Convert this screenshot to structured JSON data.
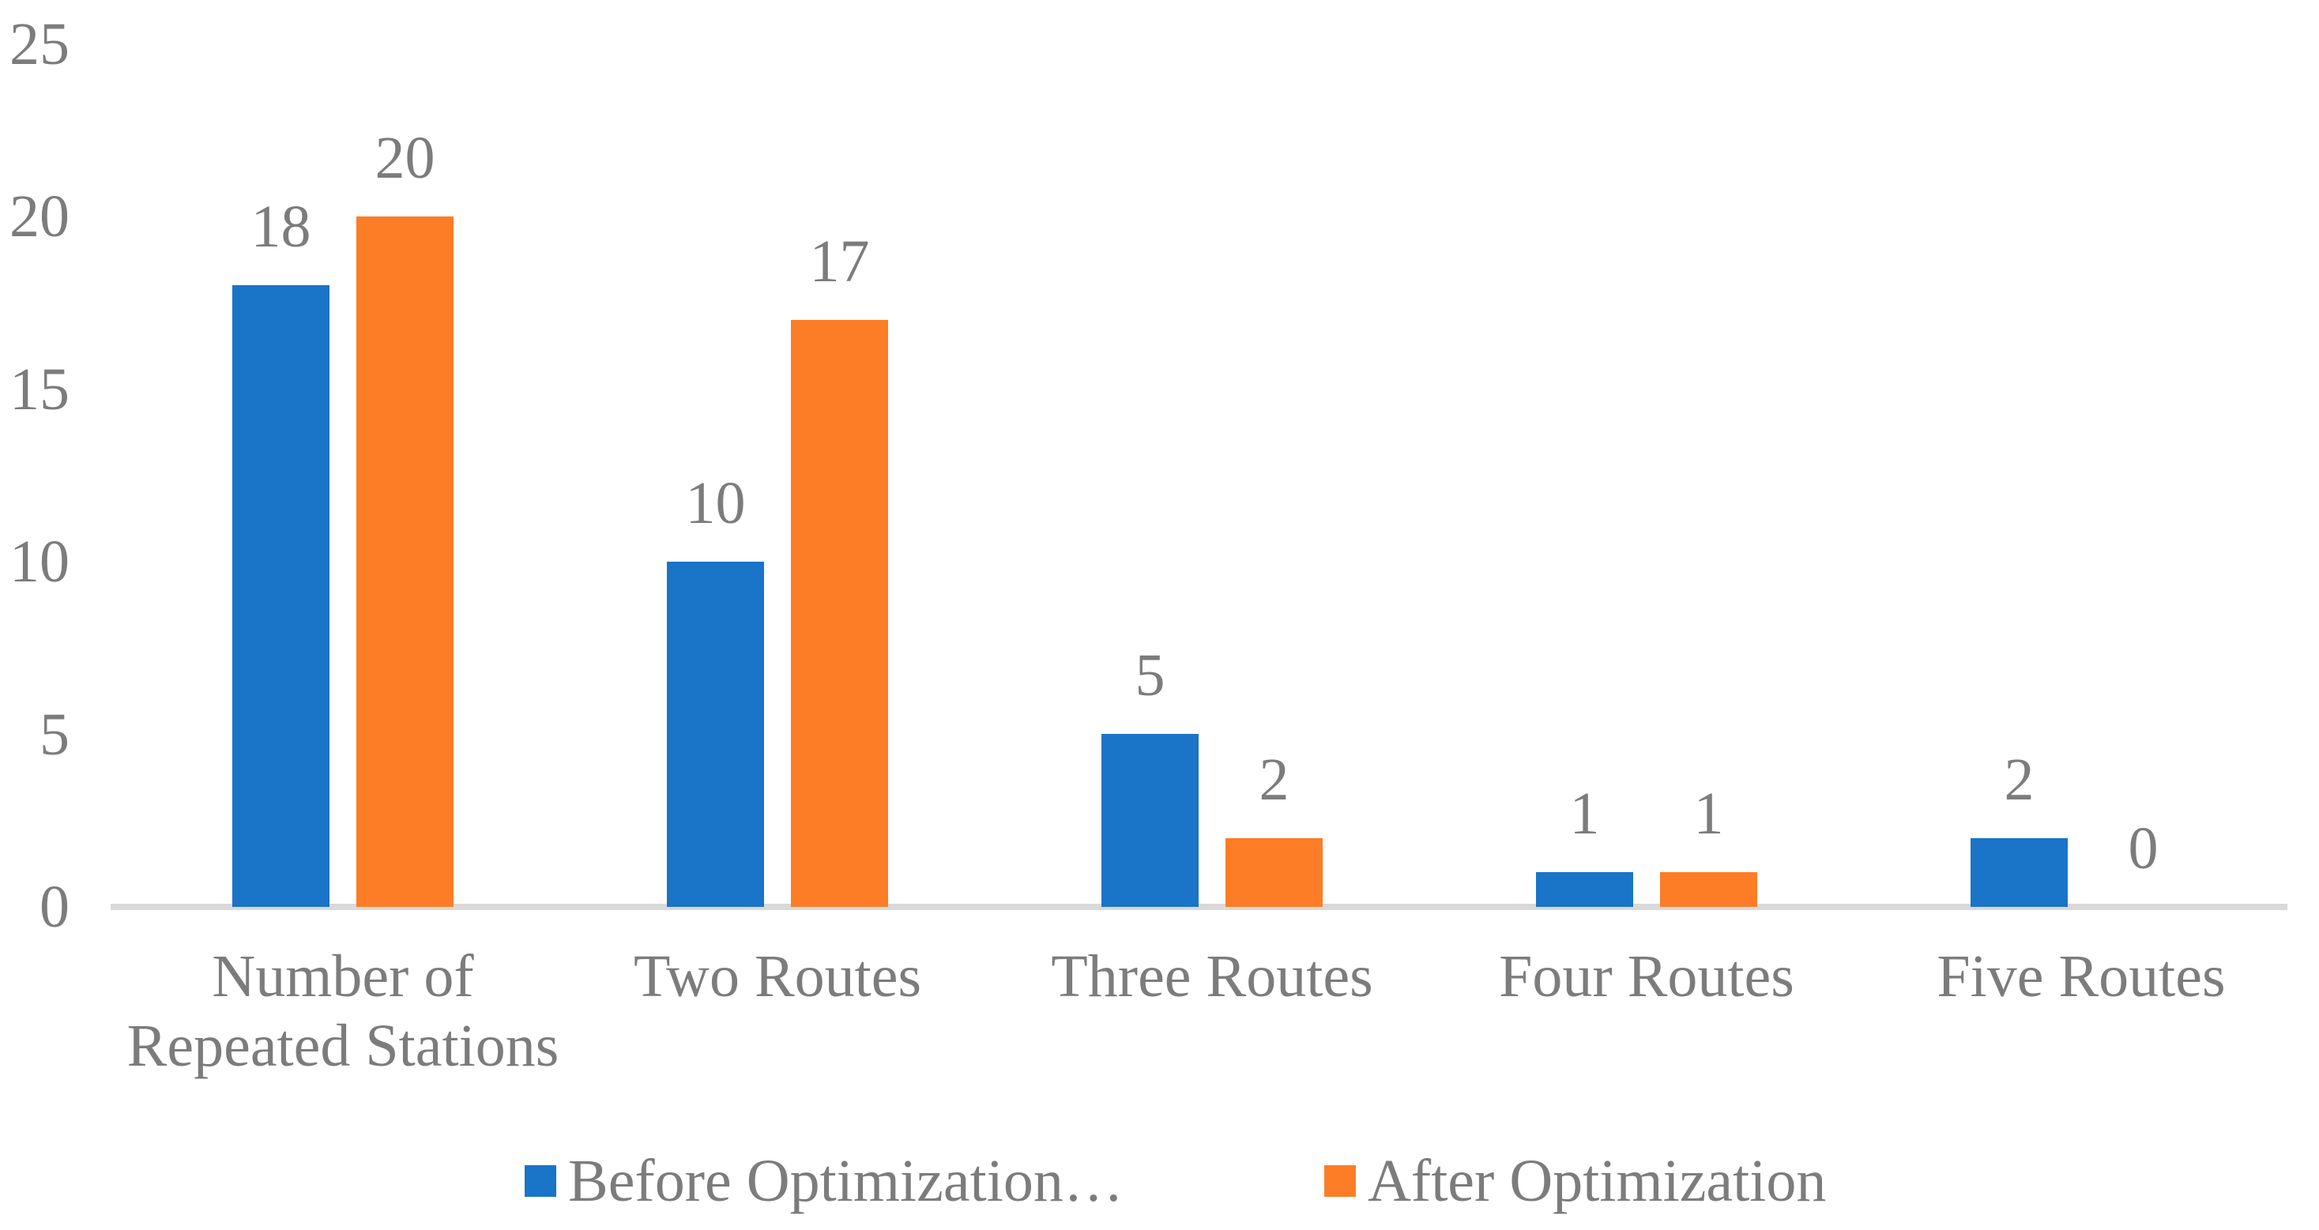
{
  "chart_data": {
    "type": "bar",
    "title": "",
    "xlabel": "",
    "ylabel": "",
    "categories": [
      "Number of\nRepeated Stations",
      "Two Routes",
      "Three Routes",
      "Four Routes",
      "Five Routes"
    ],
    "series": [
      {
        "name": "Before Optimization…",
        "color": "#1A74C8",
        "values": [
          18,
          10,
          5,
          1,
          2
        ]
      },
      {
        "name": "After Optimization",
        "color": "#FC7D26",
        "values": [
          20,
          17,
          2,
          1,
          0
        ]
      }
    ],
    "yticks": [
      0,
      5,
      10,
      15,
      20,
      25
    ],
    "ylim": [
      0,
      25
    ],
    "grid": false,
    "data_labels": true,
    "legend_position": "bottom",
    "colors": {
      "text": "#7C7C7C",
      "axis_line": "#D9D9D9",
      "background": "#FFFFFF"
    }
  }
}
